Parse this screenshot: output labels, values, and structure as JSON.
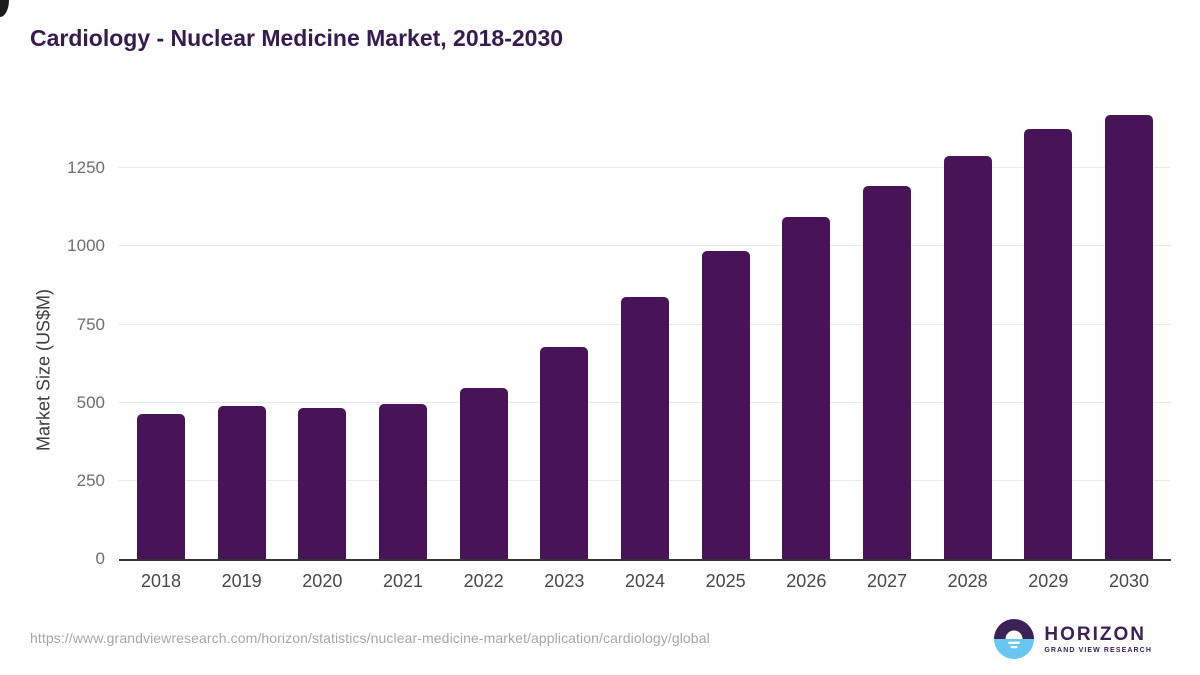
{
  "header": {
    "title": "Cardiology - Nuclear Medicine Market, 2018-2030",
    "title_color": "#371a4f"
  },
  "chart_data": {
    "type": "bar",
    "title": "Cardiology - Nuclear Medicine Market, 2018-2030",
    "categories": [
      "2018",
      "2019",
      "2020",
      "2021",
      "2022",
      "2023",
      "2024",
      "2025",
      "2026",
      "2027",
      "2028",
      "2029",
      "2030"
    ],
    "values": [
      465,
      488,
      484,
      497,
      548,
      678,
      837,
      985,
      1094,
      1194,
      1288,
      1375,
      1421
    ],
    "xlabel": "",
    "ylabel": "Market Size (US$M)",
    "yticks": [
      0,
      250,
      500,
      750,
      1000,
      1250
    ],
    "ylim": [
      0,
      1468
    ],
    "grid": true,
    "legend": false,
    "bar_color": "#491358",
    "gridline_color": "#eaeaea",
    "axis_line_color": "#333333",
    "ytick_color": "#6e6e6e",
    "xtick_color": "#484848",
    "ylabel_color": "#3d3d3d"
  },
  "footer": {
    "source_url": "https://www.grandviewresearch.com/horizon/statistics/nuclear-medicine-market/application/cardiology/global",
    "source_color": "#a6a6a6",
    "logo": {
      "title": "HORIZON",
      "subtitle": "GRAND VIEW RESEARCH",
      "icon": "horizon-sun-icon",
      "purple": "#3b2156",
      "blue": "#67c7f0"
    }
  }
}
